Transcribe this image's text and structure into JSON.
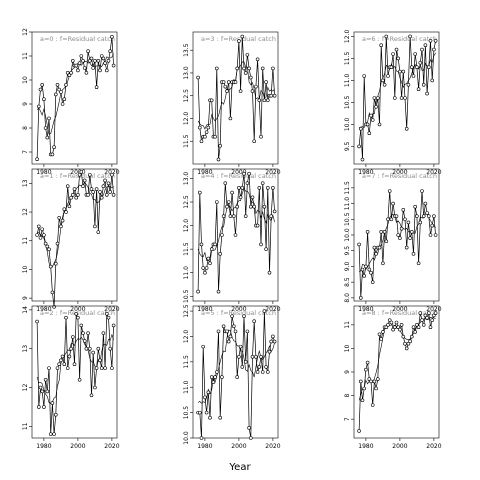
{
  "chart_data": {
    "type": "line",
    "xlabel": "Year",
    "xlim": [
      1973,
      2023
    ],
    "xticks": [
      1980,
      2000,
      2020
    ],
    "panels": [
      {
        "label": "a=0 : f=Residual catch",
        "ylim": [
          6.5,
          12.0
        ],
        "yticks": [
          7,
          8,
          9,
          10,
          11,
          12
        ],
        "x": [
          1976,
          1977,
          1978,
          1979,
          1980,
          1981,
          1982,
          1983,
          1984,
          1985,
          1986,
          1987,
          1988,
          1989,
          1990,
          1991,
          1992,
          1993,
          1994,
          1995,
          1996,
          1997,
          1998,
          1999,
          2000,
          2001,
          2002,
          2003,
          2004,
          2005,
          2006,
          2007,
          2008,
          2009,
          2010,
          2011,
          2012,
          2013,
          2014,
          2015,
          2016,
          2017,
          2018,
          2019,
          2020,
          2021
        ],
        "y": [
          6.7,
          8.9,
          9.6,
          9.8,
          9.2,
          8.0,
          7.6,
          8.4,
          6.9,
          6.9,
          7.2,
          9.4,
          9.8,
          9.6,
          9.5,
          9.0,
          9.2,
          9.8,
          10.3,
          10.2,
          10.3,
          10.8,
          10.6,
          10.6,
          10.4,
          10.7,
          11.0,
          10.8,
          10.5,
          10.3,
          11.2,
          10.8,
          10.9,
          10.5,
          10.8,
          9.7,
          10.8,
          10.4,
          11.0,
          10.9,
          10.7,
          10.4,
          10.8,
          11.2,
          11.8,
          10.6
        ]
      },
      {
        "label": "a=1 : f=Residual catch",
        "ylim": [
          8.9,
          13.5
        ],
        "yticks": [
          9,
          10,
          11,
          12,
          13
        ],
        "x": [
          1976,
          1977,
          1978,
          1979,
          1980,
          1981,
          1982,
          1983,
          1984,
          1985,
          1986,
          1987,
          1988,
          1989,
          1990,
          1991,
          1992,
          1993,
          1994,
          1995,
          1996,
          1997,
          1998,
          1999,
          2000,
          2001,
          2002,
          2003,
          2004,
          2005,
          2006,
          2007,
          2008,
          2009,
          2010,
          2011,
          2012,
          2013,
          2014,
          2015,
          2016,
          2017,
          2018,
          2019,
          2020,
          2021
        ],
        "y": [
          11.2,
          11.5,
          11.1,
          11.4,
          11.2,
          10.9,
          10.8,
          10.7,
          10.1,
          9.2,
          8.7,
          10.2,
          10.9,
          11.8,
          11.5,
          11.7,
          12.1,
          12.0,
          12.9,
          12.2,
          12.5,
          12.6,
          12.8,
          12.5,
          12.6,
          13.3,
          13.4,
          12.9,
          13.1,
          12.6,
          12.6,
          13.3,
          12.8,
          12.7,
          11.5,
          12.8,
          11.3,
          12.7,
          12.5,
          12.9,
          13.1,
          12.6,
          13.0,
          12.7,
          13.3,
          12.6
        ]
      },
      {
        "label": "a=2 : f=Residual catch",
        "ylim": [
          10.7,
          14.1
        ],
        "yticks": [
          11,
          12,
          13,
          14
        ],
        "x": [
          1976,
          1977,
          1978,
          1979,
          1980,
          1981,
          1982,
          1983,
          1984,
          1985,
          1986,
          1987,
          1988,
          1989,
          1990,
          1991,
          1992,
          1993,
          1994,
          1995,
          1996,
          1997,
          1998,
          1999,
          2000,
          2001,
          2002,
          2003,
          2004,
          2005,
          2006,
          2007,
          2008,
          2009,
          2010,
          2011,
          2012,
          2013,
          2014,
          2015,
          2016,
          2017,
          2018,
          2019,
          2020,
          2021
        ],
        "y": [
          13.7,
          11.5,
          12.0,
          11.9,
          11.5,
          12.2,
          11.9,
          12.5,
          10.8,
          11.6,
          10.8,
          11.3,
          12.5,
          12.6,
          12.7,
          12.8,
          12.6,
          13.8,
          12.5,
          12.8,
          13.0,
          13.3,
          12.6,
          13.9,
          13.8,
          12.2,
          13.6,
          13.4,
          13.2,
          13.0,
          13.4,
          13.0,
          11.8,
          12.9,
          12.0,
          12.5,
          13.0,
          12.7,
          12.5,
          13.4,
          12.5,
          13.9,
          13.8,
          13.0,
          12.5,
          13.6
        ]
      },
      {
        "label": "a=3 : f=Residual catch",
        "ylim": [
          11.0,
          13.9
        ],
        "yticks": [
          11.5,
          12.0,
          12.5,
          13.0,
          13.5
        ],
        "x": [
          1976,
          1977,
          1978,
          1979,
          1980,
          1981,
          1982,
          1983,
          1984,
          1985,
          1986,
          1987,
          1988,
          1989,
          1990,
          1991,
          1992,
          1993,
          1994,
          1995,
          1996,
          1997,
          1998,
          1999,
          2000,
          2001,
          2002,
          2003,
          2004,
          2005,
          2006,
          2007,
          2008,
          2009,
          2010,
          2011,
          2012,
          2013,
          2014,
          2015,
          2016,
          2017,
          2018,
          2019,
          2020,
          2021
        ],
        "y": [
          12.9,
          11.8,
          11.5,
          11.6,
          11.6,
          11.7,
          11.8,
          12.4,
          12.4,
          11.6,
          11.6,
          13.1,
          11.1,
          11.4,
          12.8,
          12.8,
          12.7,
          12.6,
          12.8,
          12.0,
          12.8,
          12.8,
          12.8,
          13.1,
          13.7,
          12.6,
          13.8,
          13.1,
          13.0,
          13.4,
          13.1,
          12.9,
          12.6,
          11.5,
          12.7,
          13.3,
          12.4,
          11.6,
          13.1,
          12.4,
          12.8,
          12.4,
          12.5,
          12.5,
          13.1,
          12.5
        ]
      },
      {
        "label": "a=4 : f=Residual catch",
        "ylim": [
          10.4,
          13.2
        ],
        "yticks": [
          10.5,
          11.0,
          11.5,
          12.0,
          12.5,
          13.0
        ],
        "x": [
          1976,
          1977,
          1978,
          1979,
          1980,
          1981,
          1982,
          1983,
          1984,
          1985,
          1986,
          1987,
          1988,
          1989,
          1990,
          1991,
          1992,
          1993,
          1994,
          1995,
          1996,
          1997,
          1998,
          1999,
          2000,
          2001,
          2002,
          2003,
          2004,
          2005,
          2006,
          2007,
          2008,
          2009,
          2010,
          2011,
          2012,
          2013,
          2014,
          2015,
          2016,
          2017,
          2018,
          2019,
          2020,
          2021
        ],
        "y": [
          10.6,
          12.7,
          11.6,
          11.1,
          11.0,
          11.1,
          11.3,
          11.2,
          11.5,
          11.6,
          11.6,
          12.5,
          10.6,
          11.4,
          11.8,
          12.2,
          12.9,
          12.4,
          12.5,
          12.2,
          12.7,
          12.2,
          11.8,
          12.4,
          12.8,
          12.6,
          12.8,
          13.1,
          12.2,
          12.9,
          13.1,
          12.4,
          12.6,
          12.4,
          12.0,
          12.0,
          12.8,
          11.6,
          12.9,
          12.4,
          11.5,
          12.8,
          11.0,
          12.2,
          12.8,
          12.3
        ]
      },
      {
        "label": "a=5 : f=Residual catch",
        "ylim": [
          10.0,
          12.6
        ],
        "yticks": [
          10.0,
          10.5,
          11.0,
          11.5,
          12.0,
          12.5
        ],
        "x": [
          1976,
          1977,
          1978,
          1979,
          1980,
          1981,
          1982,
          1983,
          1984,
          1985,
          1986,
          1987,
          1988,
          1989,
          1990,
          1991,
          1992,
          1993,
          1994,
          1995,
          1996,
          1997,
          1998,
          1999,
          2000,
          2001,
          2002,
          2003,
          2004,
          2005,
          2006,
          2007,
          2008,
          2009,
          2010,
          2011,
          2012,
          2013,
          2014,
          2015,
          2016,
          2017,
          2018,
          2019,
          2020,
          2021
        ],
        "y": [
          10.5,
          10.5,
          10.0,
          11.8,
          10.8,
          10.5,
          10.9,
          10.4,
          11.2,
          11.1,
          11.2,
          11.3,
          12.1,
          10.4,
          11.2,
          12.2,
          12.1,
          12.1,
          11.9,
          12.0,
          12.4,
          12.2,
          12.1,
          11.2,
          11.6,
          11.8,
          11.4,
          12.4,
          11.5,
          12.1,
          10.2,
          10.0,
          11.6,
          12.3,
          11.6,
          11.3,
          11.4,
          11.6,
          11.3,
          12.5,
          11.4,
          11.3,
          11.7,
          11.9,
          12.0,
          11.9
        ]
      },
      {
        "label": "a=6 : f=Residual catch",
        "ylim": [
          9.1,
          12.1
        ],
        "yticks": [
          9.5,
          10.0,
          10.5,
          11.0,
          11.5,
          12.0
        ],
        "x": [
          1976,
          1977,
          1978,
          1979,
          1980,
          1981,
          1982,
          1983,
          1984,
          1985,
          1986,
          1987,
          1988,
          1989,
          1990,
          1991,
          1992,
          1993,
          1994,
          1995,
          1996,
          1997,
          1998,
          1999,
          2000,
          2001,
          2002,
          2003,
          2004,
          2005,
          2006,
          2007,
          2008,
          2009,
          2010,
          2011,
          2012,
          2013,
          2014,
          2015,
          2016,
          2017,
          2018,
          2019,
          2020,
          2021
        ],
        "y": [
          9.5,
          9.9,
          9.2,
          11.1,
          10.0,
          10.0,
          9.8,
          10.2,
          10.1,
          10.6,
          10.4,
          10.6,
          10.0,
          11.8,
          11.0,
          10.9,
          12.0,
          11.1,
          11.3,
          11.3,
          11.6,
          10.6,
          11.7,
          11.5,
          11.2,
          10.6,
          11.2,
          10.6,
          9.9,
          10.9,
          12.0,
          11.3,
          11.1,
          11.6,
          11.3,
          10.8,
          11.4,
          11.7,
          10.9,
          11.8,
          10.7,
          11.3,
          11.9,
          11.0,
          11.7,
          11.9
        ]
      },
      {
        "label": "a=7 : f=Residual catch",
        "ylim": [
          7.9,
          12.1
        ],
        "yticks": [
          8.0,
          8.5,
          9.0,
          9.5,
          10.0,
          10.5,
          11.0,
          11.5
        ],
        "x": [
          1976,
          1977,
          1978,
          1979,
          1980,
          1981,
          1982,
          1983,
          1984,
          1985,
          1986,
          1987,
          1988,
          1989,
          1990,
          1991,
          1992,
          1993,
          1994,
          1995,
          1996,
          1997,
          1998,
          1999,
          2000,
          2001,
          2002,
          2003,
          2004,
          2005,
          2006,
          2007,
          2008,
          2009,
          2010,
          2011,
          2012,
          2013,
          2014,
          2015,
          2016,
          2017,
          2018,
          2019,
          2020,
          2021
        ],
        "y": [
          9.7,
          8.0,
          8.9,
          8.7,
          9.0,
          10.1,
          8.9,
          8.8,
          8.5,
          9.6,
          9.4,
          9.6,
          9.6,
          10.1,
          9.1,
          10.1,
          9.8,
          10.5,
          11.4,
          10.5,
          11.0,
          10.6,
          10.6,
          10.0,
          9.9,
          10.2,
          10.8,
          10.5,
          9.6,
          10.4,
          9.9,
          10.1,
          9.4,
          10.9,
          10.6,
          9.1,
          10.4,
          11.4,
          10.6,
          11.0,
          10.7,
          10.6,
          10.0,
          10.3,
          10.6,
          10.0
        ]
      },
      {
        "label": "a=8 : f=Residual catch",
        "ylim": [
          6.2,
          11.8
        ],
        "yticks": [
          7,
          8,
          9,
          10,
          11
        ],
        "x": [
          1976,
          1977,
          1978,
          1979,
          1980,
          1981,
          1982,
          1983,
          1984,
          1985,
          1986,
          1987,
          1988,
          1989,
          1990,
          1991,
          1992,
          1993,
          1994,
          1995,
          1996,
          1997,
          1998,
          1999,
          2000,
          2001,
          2002,
          2003,
          2004,
          2005,
          2006,
          2007,
          2008,
          2009,
          2010,
          2011,
          2012,
          2013,
          2014,
          2015,
          2016,
          2017,
          2018,
          2019,
          2020,
          2021
        ],
        "y": [
          6.5,
          8.6,
          7.8,
          8.3,
          9.1,
          9.4,
          8.7,
          8.6,
          7.6,
          8.6,
          8.3,
          8.7,
          10.6,
          10.4,
          10.7,
          10.9,
          10.9,
          11.0,
          11.2,
          11.1,
          10.8,
          10.9,
          11.1,
          10.9,
          10.8,
          11.0,
          10.5,
          10.2,
          10.0,
          10.2,
          10.3,
          10.5,
          10.9,
          10.7,
          11.0,
          10.9,
          11.5,
          11.2,
          11.0,
          11.4,
          11.3,
          11.5,
          10.9,
          11.2,
          11.4,
          11.5
        ]
      }
    ]
  }
}
